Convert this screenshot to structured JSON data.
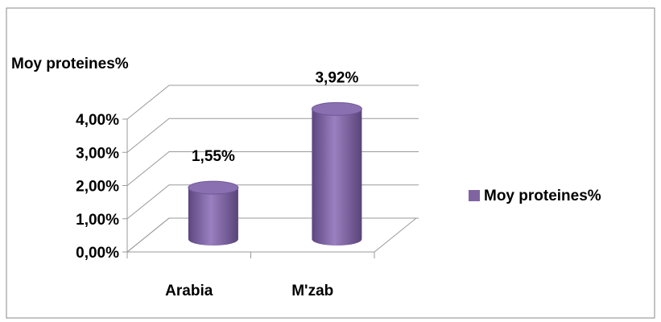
{
  "chart_data": {
    "type": "bar3d",
    "title": "Moy proteines%",
    "categories": [
      "Arabia",
      "M'zab"
    ],
    "series": [
      {
        "name": "Moy proteines%",
        "color": "#8064a2",
        "values": [
          1.55,
          3.92
        ],
        "value_labels": [
          "1,55%",
          "3,92%"
        ]
      }
    ],
    "ylim": [
      0,
      4
    ],
    "yticks": [
      {
        "value": 0,
        "label": "0,00%"
      },
      {
        "value": 1,
        "label": "1,00%"
      },
      {
        "value": 2,
        "label": "2,00%"
      },
      {
        "value": 3,
        "label": "3,00%"
      },
      {
        "value": 4,
        "label": "4,00%"
      }
    ],
    "grid": true,
    "legend": "right"
  }
}
